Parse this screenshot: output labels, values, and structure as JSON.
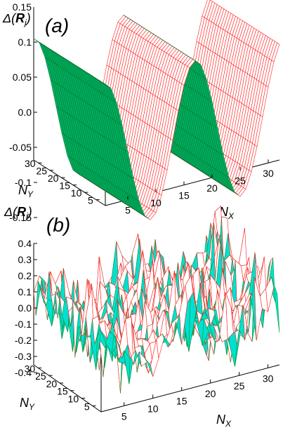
{
  "chart_data": [
    {
      "panel": "(a)",
      "type": "surface",
      "zlabel": "Δ(Rj)",
      "xlabel": "NX",
      "ylabel": "NY",
      "zticks": [
        "0.1",
        "0.05",
        "0.0",
        "-0.05",
        "-0.1",
        "-0.15"
      ],
      "ztick_values": [
        0.1,
        0.05,
        0.0,
        -0.05,
        -0.1,
        -0.15
      ],
      "top_clipped_tick": "0.15",
      "xticks": [
        5,
        10,
        15,
        20,
        25,
        30
      ],
      "yticks": [
        30,
        25,
        20,
        15,
        10,
        5
      ],
      "xlim": [
        1,
        32
      ],
      "ylim": [
        1,
        32
      ],
      "zlim": [
        -0.15,
        0.15
      ],
      "surface": {
        "function": "0.105*cos(2*pi*(NX-1)/16)",
        "period_x": 16,
        "amplitude": 0.105,
        "grid_n": 32
      },
      "colors": {
        "top": "#ff2020",
        "bottom": "#00b060",
        "bottom_edge": "#007a35"
      }
    },
    {
      "panel": "(b)",
      "type": "surface",
      "zlabel": "Δ(Rj)",
      "xlabel": "NX",
      "ylabel": "NY",
      "zticks": [
        "0.4",
        "0.3",
        "0.2",
        "0.1",
        "0.0",
        "-0.1",
        "-0.2",
        "-0.3",
        "-0.4"
      ],
      "ztick_values": [
        0.4,
        0.3,
        0.2,
        0.1,
        0.0,
        -0.1,
        -0.2,
        -0.3,
        -0.4
      ],
      "xticks": [
        5,
        10,
        15,
        20,
        25,
        30
      ],
      "yticks": [
        30,
        25,
        20,
        15,
        10,
        5
      ],
      "xlim": [
        1,
        32
      ],
      "ylim": [
        1,
        32
      ],
      "zlim": [
        -0.4,
        0.4
      ],
      "surface": {
        "function": "0.12*cos(2*pi*(NX-1)/16) + noise",
        "period_x": 16,
        "amplitude": 0.12,
        "noise_amplitude": 0.28,
        "grid_n": 32
      },
      "colors": {
        "top": "#ff2020",
        "bottom": "#00e0d0",
        "bottom_edge": "#00a040"
      }
    }
  ]
}
